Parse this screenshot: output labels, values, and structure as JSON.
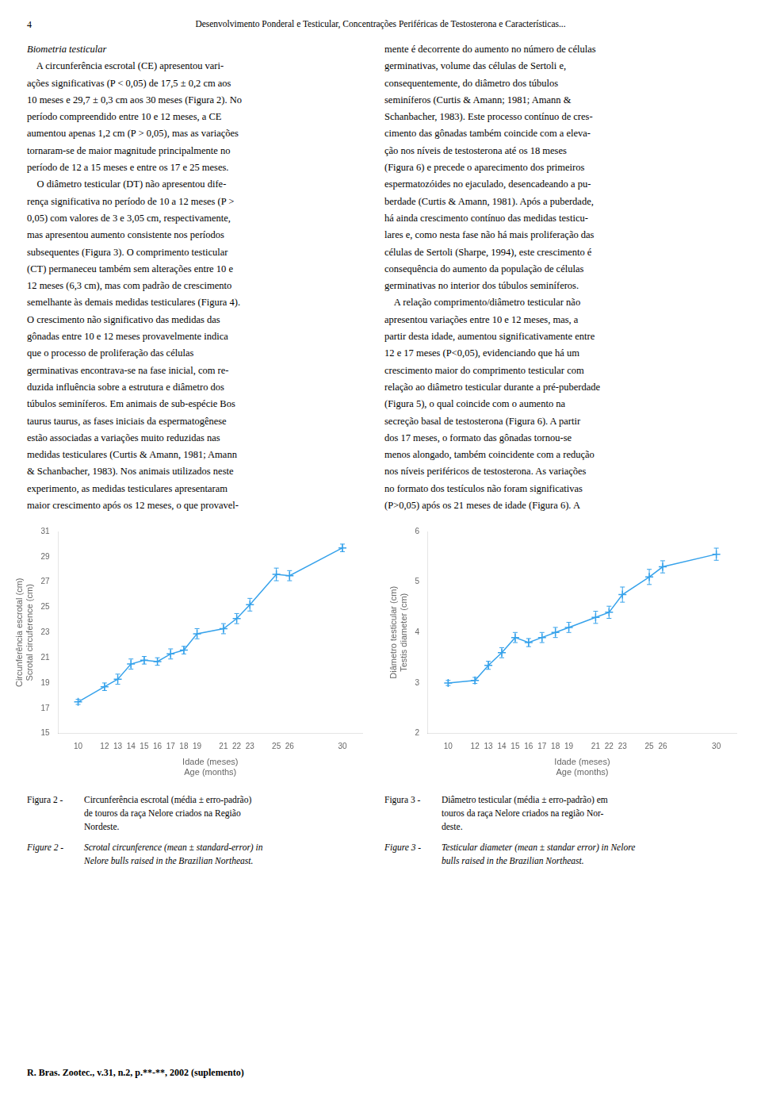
{
  "page_number": "4",
  "page_title": "Desenvolvimento Ponderal e Testicular, Concentrações Periféricas de Testosterona e Características...",
  "text_columns": [
    [
      "Biometria testicular",
      "    A circunferência escrotal (CE) apresentou vari-",
      "ações significativas (P < 0,05) de 17,5 ± 0,2 cm aos",
      "10 meses e 29,7 ± 0,3 cm aos 30 meses (Figura 2). No",
      "período compreendido entre 10 e 12 meses, a CE",
      "aumentou apenas 1,2 cm (P > 0,05), mas as variações",
      "tornaram-se de maior magnitude principalmente no",
      "período de 12 a 15 meses e entre os 17 e 25 meses.",
      "    O diâmetro testicular (DT) não apresentou dife-",
      "rença significativa no período de 10 a 12 meses (P >",
      "0,05) com valores de 3 e 3,05 cm, respectivamente,",
      "mas apresentou aumento consistente nos períodos",
      "subsequentes (Figura 3). O comprimento testicular",
      "(CT) permaneceu também sem alterações entre 10 e",
      "12 meses (6,3 cm), mas com padrão de crescimento",
      "semelhante às demais medidas testiculares (Figura 4).",
      "O crescimento não significativo das medidas das",
      "gônadas entre 10 e 12 meses provavelmente indica",
      "que o processo de proliferação das células",
      "germinativas encontrava-se na fase inicial, com re-",
      "duzida influência sobre a estrutura e diâmetro dos",
      "túbulos seminíferos. Em animais de sub-espécie Bos",
      "taurus taurus, as fases iniciais da espermatogênese",
      "estão associadas a variações muito reduzidas nas",
      "medidas testiculares (Curtis & Amann, 1981; Amann",
      "& Schanbacher, 1983). Nos animais utilizados neste",
      "experimento, as medidas testiculares apresentaram",
      "maior crescimento após os 12 meses, o que provavel-"
    ],
    [
      "mente é decorrente do aumento no número de células",
      "germinativas, volume das células de Sertoli e,",
      "consequentemente, do diâmetro dos túbulos",
      "seminíferos (Curtis & Amann; 1981; Amann &",
      "Schanbacher, 1983). Este processo contínuo de cres-",
      "cimento das gônadas também coincide com a eleva-",
      "ção nos níveis de testosterona até os 18 meses",
      "(Figura 6) e precede o aparecimento dos primeiros",
      "espermatozóides no ejaculado, desencadeando a pu-",
      "berdade (Curtis & Amann, 1981). Após a puberdade,",
      "há ainda crescimento contínuo das medidas testicu-",
      "lares e, como nesta fase não há mais proliferação das",
      "células de Sertoli (Sharpe, 1994), este crescimento é",
      "consequência do aumento da população de células",
      "germinativas no interior dos túbulos seminíferos.",
      "    A relação comprimento/diâmetro testicular não",
      "apresentou variações entre 10 e 12 meses, mas, a",
      "partir desta idade, aumentou significativamente entre",
      "12 e 17 meses (P<0,05), evidenciando que há um",
      "crescimento maior do comprimento testicular com",
      "relação ao diâmetro testicular durante a pré-puberdade",
      "(Figura 5), o qual coincide com o aumento na",
      "secreção basal de testosterona (Figura 6). A partir",
      "dos 17 meses, o formato das gônadas tornou-se",
      "menos alongado, também coincidente com a redução",
      "nos níveis periféricos de testosterona. As variações",
      "no formato dos testículos não foram significativas",
      "(P>0,05) após os 21 meses de idade (Figura 6). A"
    ]
  ],
  "footer": "R. Bras. Zootec., v.31, n.2, p.**-**, 2002 (suplemento)",
  "chart_data": [
    {
      "type": "line",
      "x": [
        10,
        12,
        13,
        14,
        15,
        16,
        17,
        18,
        19,
        21,
        22,
        23,
        25,
        26,
        30
      ],
      "values": [
        17.5,
        18.7,
        19.3,
        20.5,
        20.8,
        20.7,
        21.3,
        21.6,
        22.9,
        23.3,
        24.1,
        25.2,
        27.6,
        27.5,
        29.7
      ],
      "yerr": [
        0.2,
        0.3,
        0.4,
        0.4,
        0.3,
        0.3,
        0.4,
        0.3,
        0.4,
        0.4,
        0.4,
        0.5,
        0.5,
        0.4,
        0.3
      ],
      "marker": "cross",
      "xlabel": [
        "Idade (meses)",
        "Age (months)"
      ],
      "ylabel": [
        "Circunferência escrotal (cm)",
        "Scrotal circuference (cm)"
      ],
      "xlim": [
        8.5,
        31.5
      ],
      "ylim": [
        15,
        31
      ],
      "xticks": [
        10,
        12,
        13,
        14,
        15,
        16,
        17,
        18,
        19,
        21,
        22,
        23,
        25,
        26,
        30
      ],
      "yticks": [
        15,
        17,
        19,
        21,
        23,
        25,
        27,
        29,
        31
      ],
      "grid": false,
      "caption": {
        "pt": [
          "Figura 2 -",
          "Circunferência escrotal (média ± erro-padrão)",
          "de touros da raça Nelore criados na Região",
          "Nordeste."
        ],
        "en": [
          "Figure 2 -",
          "Scrotal circunference (mean ± standard-error) in",
          "Nelore bulls raised in the Brazilian Northeast."
        ]
      }
    },
    {
      "type": "line",
      "x": [
        10,
        12,
        13,
        14,
        15,
        16,
        17,
        18,
        19,
        21,
        22,
        23,
        25,
        26,
        30
      ],
      "values": [
        3.0,
        3.05,
        3.35,
        3.6,
        3.9,
        3.8,
        3.9,
        4.0,
        4.1,
        4.3,
        4.4,
        4.75,
        5.1,
        5.3,
        5.55
      ],
      "yerr": [
        0.05,
        0.06,
        0.08,
        0.1,
        0.1,
        0.08,
        0.1,
        0.1,
        0.1,
        0.12,
        0.12,
        0.15,
        0.15,
        0.12,
        0.12
      ],
      "marker": "cross",
      "xlabel": [
        "Idade (meses)",
        "Age (months)"
      ],
      "ylabel": [
        "Diâmetro testicular (cm)",
        "Testis diameter (cm)"
      ],
      "xlim": [
        8.5,
        31.5
      ],
      "ylim": [
        2,
        6
      ],
      "xticks": [
        10,
        12,
        13,
        14,
        15,
        16,
        17,
        18,
        19,
        21,
        22,
        23,
        25,
        26,
        30
      ],
      "yticks": [
        2,
        3,
        4,
        5,
        6
      ],
      "grid": false,
      "caption": {
        "pt": [
          "Figura 3 -",
          "Diâmetro testicular (média ± erro-padrão) em",
          "touros da raça Nelore criados na região Nor-",
          "deste."
        ],
        "en": [
          "Figure 3 -",
          "Testicular diameter (mean ± standar error) in Nelore",
          "bulls raised in the Brazilian Northeast."
        ]
      }
    }
  ]
}
